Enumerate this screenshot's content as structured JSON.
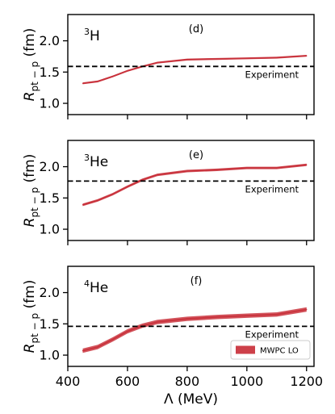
{
  "chart_data": [
    {
      "type": "line",
      "panel": "(d)",
      "nucleus": {
        "mass": "3",
        "symbol": "H"
      },
      "ylabel": {
        "main": "R",
        "sub": "pt − p",
        "unit": "(fm)"
      },
      "xlim": [
        400,
        1225
      ],
      "ylim": [
        0.82,
        2.42
      ],
      "yticks": [
        1.0,
        1.5,
        2.0
      ],
      "ytick_labels": [
        "1.0",
        "1.5",
        "2.0"
      ],
      "xticks": [
        400,
        600,
        800,
        1000,
        1200
      ],
      "experiment": {
        "value": 1.59,
        "label": "Experiment"
      },
      "series": [
        {
          "x": [
            450,
            500,
            550,
            600,
            650,
            700,
            800,
            900,
            1000,
            1100,
            1200
          ],
          "y": [
            1.32,
            1.35,
            1.43,
            1.52,
            1.59,
            1.65,
            1.7,
            1.71,
            1.72,
            1.73,
            1.76
          ],
          "band": 0.015
        }
      ]
    },
    {
      "type": "line",
      "panel": "(e)",
      "nucleus": {
        "mass": "3",
        "symbol": "He"
      },
      "ylabel": {
        "main": "R",
        "sub": "pt − p",
        "unit": "(fm)"
      },
      "xlim": [
        400,
        1225
      ],
      "ylim": [
        0.82,
        2.42
      ],
      "yticks": [
        1.0,
        1.5,
        2.0
      ],
      "ytick_labels": [
        "1.0",
        "1.5",
        "2.0"
      ],
      "xticks": [
        400,
        600,
        800,
        1000,
        1200
      ],
      "experiment": {
        "value": 1.77,
        "label": "Experiment"
      },
      "series": [
        {
          "x": [
            450,
            500,
            550,
            600,
            650,
            700,
            800,
            900,
            1000,
            1100,
            1200
          ],
          "y": [
            1.39,
            1.46,
            1.56,
            1.68,
            1.79,
            1.87,
            1.93,
            1.95,
            1.98,
            1.98,
            2.03
          ],
          "band": 0.02
        }
      ]
    },
    {
      "type": "line",
      "panel": "(f)",
      "nucleus": {
        "mass": "4",
        "symbol": "He"
      },
      "ylabel": {
        "main": "R",
        "sub": "pt − p",
        "unit": "(fm)"
      },
      "xlabel": "Λ (MeV)",
      "xlim": [
        400,
        1225
      ],
      "ylim": [
        0.82,
        2.42
      ],
      "yticks": [
        1.0,
        1.5,
        2.0
      ],
      "ytick_labels": [
        "1.0",
        "1.5",
        "2.0"
      ],
      "xticks": [
        400,
        600,
        800,
        1000,
        1200
      ],
      "xtick_labels": [
        "400",
        "600",
        "800",
        "1000",
        "1200"
      ],
      "experiment": {
        "value": 1.46,
        "label": "Experiment"
      },
      "legend": {
        "label": "MWPC LO",
        "position": "lower right"
      },
      "series": [
        {
          "name": "MWPC LO",
          "x": [
            450,
            500,
            550,
            600,
            650,
            700,
            800,
            900,
            1000,
            1100,
            1200
          ],
          "y": [
            1.07,
            1.13,
            1.25,
            1.38,
            1.47,
            1.53,
            1.58,
            1.61,
            1.63,
            1.65,
            1.73
          ],
          "band": 0.035
        }
      ]
    }
  ],
  "colors": {
    "band": "#c8303a",
    "band_fill": "#cd4049",
    "experiment": "#000000",
    "axes": "#000000"
  }
}
